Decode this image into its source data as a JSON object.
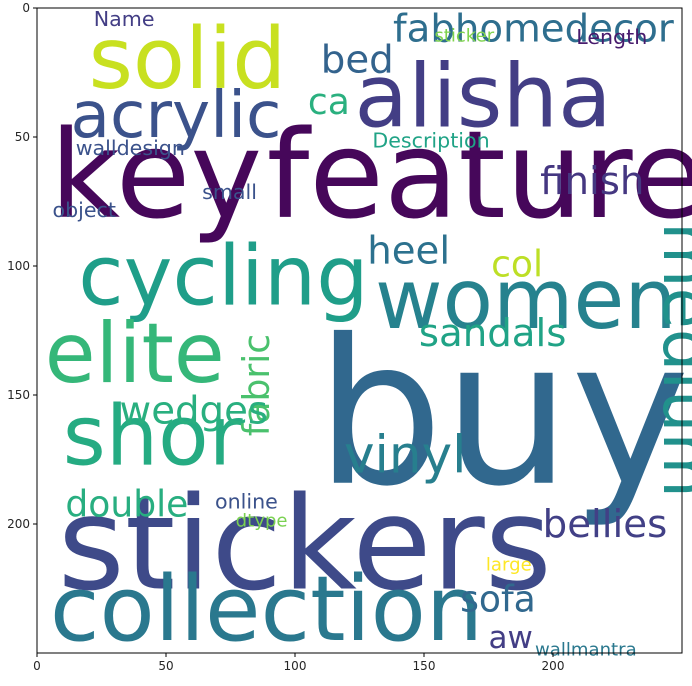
{
  "chart_data": {
    "type": "wordcloud",
    "title": "",
    "xlabel": "",
    "ylabel": "",
    "xlim": [
      0,
      250
    ],
    "ylim": [
      250,
      0
    ],
    "x_ticks": [
      0,
      50,
      100,
      150,
      200
    ],
    "y_ticks": [
      0,
      50,
      100,
      150,
      200
    ],
    "background": "#ffffff",
    "words": [
      {
        "text": "buy",
        "x": 108,
        "y": 184,
        "size": 78,
        "color": "#31688e",
        "rotate": 0
      },
      {
        "text": "stickers",
        "x": 8,
        "y": 225,
        "size": 50,
        "color": "#3e4a89",
        "rotate": 0
      },
      {
        "text": "key",
        "x": 5,
        "y": 81,
        "size": 47,
        "color": "#46075a",
        "rotate": 0
      },
      {
        "text": "features",
        "x": 89,
        "y": 81,
        "size": 47,
        "color": "#46075a",
        "rotate": 0
      },
      {
        "text": "collection",
        "x": 5,
        "y": 245,
        "size": 35,
        "color": "#2a788e",
        "rotate": 0
      },
      {
        "text": "alisha",
        "x": 123,
        "y": 46,
        "size": 34,
        "color": "#433e85",
        "rotate": 0
      },
      {
        "text": "solid",
        "x": 20,
        "y": 31,
        "size": 33,
        "color": "#c8e020",
        "rotate": 0
      },
      {
        "text": "cycling",
        "x": 16,
        "y": 115,
        "size": 32,
        "color": "#1f9e89",
        "rotate": 0
      },
      {
        "text": "women",
        "x": 131,
        "y": 124,
        "size": 32,
        "color": "#26828e",
        "rotate": 0
      },
      {
        "text": "elite",
        "x": 3,
        "y": 145,
        "size": 32,
        "color": "#35b779",
        "rotate": 0
      },
      {
        "text": "shor",
        "x": 10,
        "y": 177,
        "size": 32,
        "color": "#25ab82",
        "rotate": 0
      },
      {
        "text": "acrylic",
        "x": 13,
        "y": 50,
        "size": 25,
        "color": "#3b528b",
        "rotate": 0
      },
      {
        "text": "medium",
        "x": 243,
        "y": 83,
        "size": 26,
        "color": "#21918c",
        "rotate": 90
      },
      {
        "text": "vinyl",
        "x": 119,
        "y": 180,
        "size": 20,
        "color": "#277f8e",
        "rotate": 0
      },
      {
        "text": "fabhomedecor",
        "x": 138,
        "y": 13,
        "size": 15,
        "color": "#2e6e8e",
        "rotate": 0
      },
      {
        "text": "bed",
        "x": 110,
        "y": 25,
        "size": 15,
        "color": "#33638d",
        "rotate": 0
      },
      {
        "text": "ca",
        "x": 105,
        "y": 41,
        "size": 14,
        "color": "#2ab07f",
        "rotate": 0
      },
      {
        "text": "finish",
        "x": 195,
        "y": 72,
        "size": 15,
        "color": "#453781",
        "rotate": 0
      },
      {
        "text": "heel",
        "x": 128,
        "y": 99,
        "size": 15,
        "color": "#2c718e",
        "rotate": 0
      },
      {
        "text": "col",
        "x": 176,
        "y": 104,
        "size": 14,
        "color": "#bddf26",
        "rotate": 0
      },
      {
        "text": "sandals",
        "x": 148,
        "y": 131,
        "size": 15,
        "color": "#20a386",
        "rotate": 0
      },
      {
        "text": "fabric",
        "x": 90,
        "y": 166,
        "size": 14,
        "color": "#4ac16d",
        "rotate": -90
      },
      {
        "text": "wedges",
        "x": 32,
        "y": 161,
        "size": 15,
        "color": "#29af7f",
        "rotate": 0
      },
      {
        "text": "double",
        "x": 11,
        "y": 197,
        "size": 14,
        "color": "#28ae80",
        "rotate": 0
      },
      {
        "text": "bellies",
        "x": 196,
        "y": 205,
        "size": 15,
        "color": "#424086",
        "rotate": 0
      },
      {
        "text": "sofa",
        "x": 164,
        "y": 234,
        "size": 14,
        "color": "#31688e",
        "rotate": 0
      },
      {
        "text": "aw",
        "x": 175,
        "y": 248,
        "size": 12,
        "color": "#433e85",
        "rotate": 0
      },
      {
        "text": "online",
        "x": 69,
        "y": 194,
        "size": 8,
        "color": "#3b528b",
        "rotate": 0
      },
      {
        "text": "dtype",
        "x": 77,
        "y": 201,
        "size": 7,
        "color": "#7ad151",
        "rotate": 0
      },
      {
        "text": "large",
        "x": 174,
        "y": 218,
        "size": 7,
        "color": "#fde725",
        "rotate": 0
      },
      {
        "text": "wallmantra",
        "x": 193,
        "y": 251,
        "size": 7,
        "color": "#2a788e",
        "rotate": 0
      },
      {
        "text": "Name",
        "x": 22,
        "y": 7,
        "size": 8,
        "color": "#433e85",
        "rotate": 0
      },
      {
        "text": "sticker",
        "x": 154,
        "y": 13,
        "size": 7,
        "color": "#7fd34e",
        "rotate": 0
      },
      {
        "text": "Length",
        "x": 209,
        "y": 14,
        "size": 8,
        "color": "#481b6d",
        "rotate": 0
      },
      {
        "text": "Description",
        "x": 130,
        "y": 54,
        "size": 8,
        "color": "#20a386",
        "rotate": 0
      },
      {
        "text": "walldesign",
        "x": 15,
        "y": 57,
        "size": 8,
        "color": "#3b528b",
        "rotate": 0
      },
      {
        "text": "small",
        "x": 64,
        "y": 74,
        "size": 8,
        "color": "#3b528b",
        "rotate": 0
      },
      {
        "text": "object",
        "x": 6,
        "y": 81,
        "size": 8,
        "color": "#3b528b",
        "rotate": 0
      }
    ]
  }
}
